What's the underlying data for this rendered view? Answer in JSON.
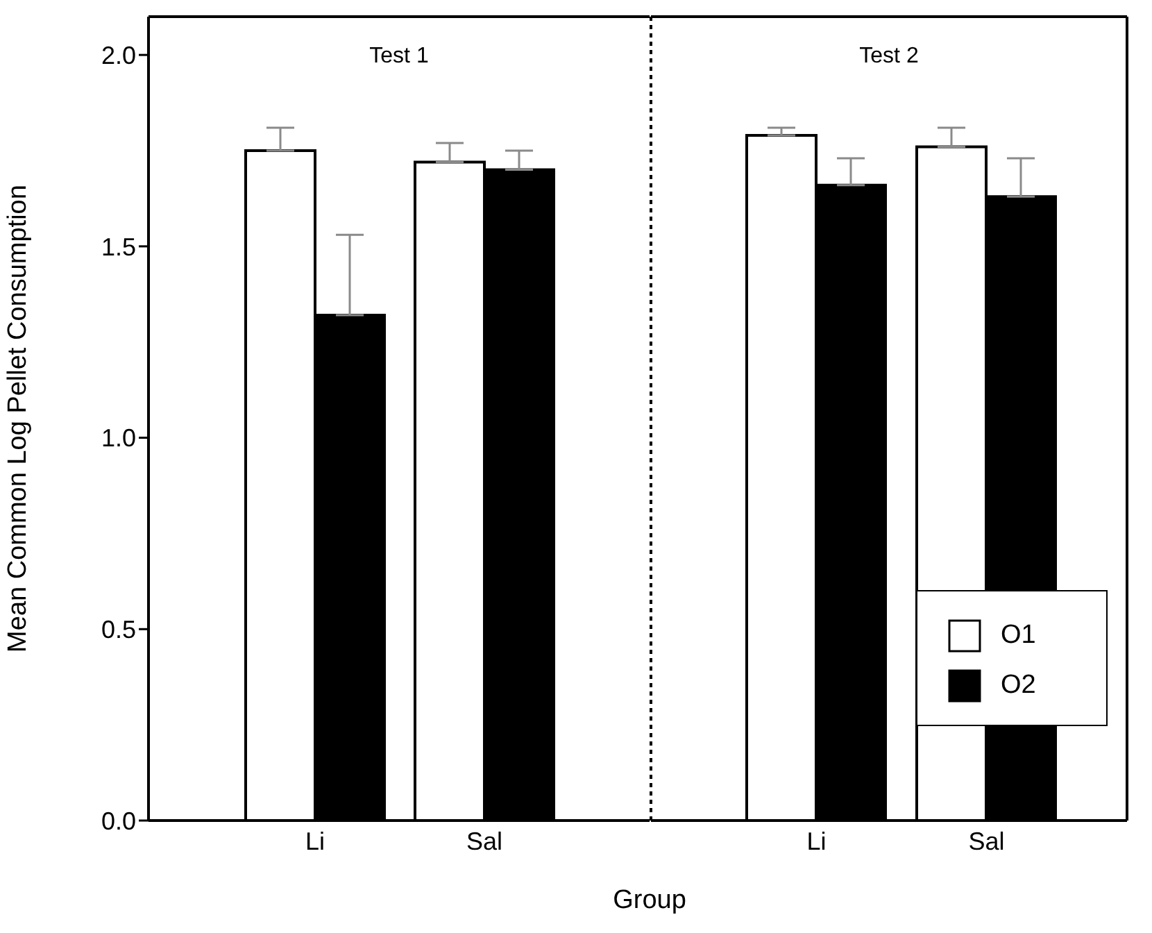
{
  "chart_data": [
    {
      "type": "bar",
      "title": "Test 1",
      "categories": [
        "Li",
        "Sal"
      ],
      "ylabel": "Mean Common Log Pellet Consumption",
      "ylim": [
        0,
        2.1
      ],
      "yticks": [
        {
          "value": 0,
          "label": "0.0"
        },
        {
          "value": 0.5,
          "label": "0.5"
        },
        {
          "value": 1,
          "label": "1.0"
        },
        {
          "value": 1.5,
          "label": "1.5"
        },
        {
          "value": 2,
          "label": "2.0"
        }
      ],
      "series": [
        {
          "color": "#ffffff",
          "values": [
            1.75,
            1.72
          ],
          "errors": [
            0.06,
            0.05
          ]
        },
        {
          "color": "#000000",
          "values": [
            1.32,
            1.7
          ],
          "errors": [
            0.21,
            0.05
          ]
        }
      ]
    },
    {
      "type": "bar",
      "title": "Test 2",
      "categories": [
        "Li",
        "Sal"
      ],
      "xlabel": "Group",
      "ylim": [
        0,
        2.1
      ],
      "tick_labels": "x",
      "legend": "bottom right",
      "series": [
        {
          "name": "O1",
          "color": "#ffffff",
          "values": [
            1.79,
            1.76
          ],
          "errors": [
            0.02,
            0.05
          ]
        },
        {
          "name": "O2",
          "color": "#000000",
          "values": [
            1.66,
            1.63
          ],
          "errors": [
            0.07,
            0.1
          ]
        }
      ]
    }
  ]
}
